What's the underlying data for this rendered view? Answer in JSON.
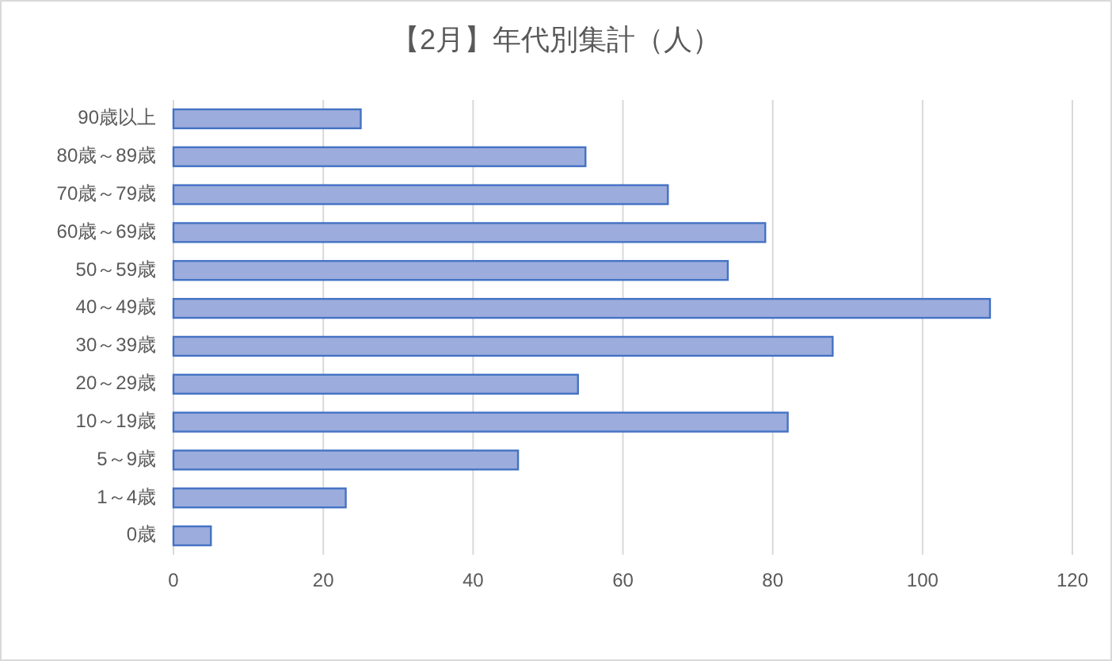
{
  "chart_data": {
    "type": "bar",
    "orientation": "horizontal",
    "title": "【2月】年代別集計（人）",
    "categories": [
      "90歳以上",
      "80歳～89歳",
      "70歳～79歳",
      "60歳～69歳",
      "50～59歳",
      "40～49歳",
      "30～39歳",
      "20～29歳",
      "10～19歳",
      "5～9歳",
      "1～4歳",
      "0歳"
    ],
    "values": [
      25,
      55,
      66,
      79,
      74,
      109,
      88,
      54,
      82,
      46,
      23,
      5
    ],
    "color": "#9cacdc",
    "xlim": [
      0,
      120
    ],
    "xticks": [
      0,
      20,
      40,
      60,
      80,
      100,
      120
    ],
    "grid": "x"
  }
}
